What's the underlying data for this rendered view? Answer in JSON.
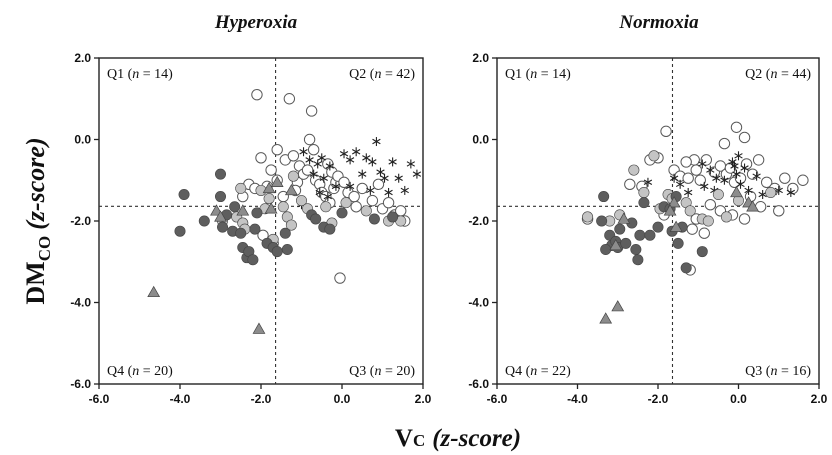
{
  "figure": {
    "ylabel_main": "DM",
    "ylabel_sub": "CO",
    "ylabel_unit": "(z-score)",
    "xlabel_main": "V",
    "xlabel_sub": "C",
    "xlabel_unit": "(z-score)",
    "marker_colors": {
      "filled_dark": "#5e5e5e",
      "filled_light": "#c4c4c4",
      "open_stroke": "#5a5a5a",
      "triangle_fill": "#8c8c8c"
    }
  },
  "chart_data": [
    {
      "type": "scatter",
      "title": "Hyperoxia",
      "xlim": [
        -6.0,
        2.0
      ],
      "ylim": [
        -6.0,
        2.0
      ],
      "xticks": [
        "-6.0",
        "-4.0",
        "-2.0",
        "0.0",
        "2.0"
      ],
      "yticks": [
        "2.0",
        "0.0",
        "-2.0",
        "-4.0",
        "-6.0"
      ],
      "xthreshold": -1.64,
      "ythreshold": -1.64,
      "quadrants": {
        "q1": {
          "label": "Q1",
          "n": "14"
        },
        "q2": {
          "label": "Q2",
          "n": "42"
        },
        "q3": {
          "label": "Q3",
          "n": "20"
        },
        "q4": {
          "label": "Q4",
          "n": "20"
        }
      },
      "series": [
        {
          "marker": "filled_dark",
          "points": [
            [
              -4.0,
              -2.25
            ],
            [
              -3.9,
              -1.35
            ],
            [
              -3.4,
              -2.0
            ],
            [
              -3.0,
              -0.85
            ],
            [
              -3.0,
              -1.4
            ],
            [
              -2.95,
              -2.15
            ],
            [
              -2.85,
              -1.85
            ],
            [
              -2.7,
              -2.25
            ],
            [
              -2.65,
              -1.65
            ],
            [
              -2.5,
              -2.3
            ],
            [
              -2.45,
              -2.65
            ],
            [
              -2.35,
              -2.9
            ],
            [
              -2.3,
              -2.75
            ],
            [
              -2.2,
              -2.95
            ],
            [
              -2.15,
              -2.2
            ],
            [
              -2.1,
              -1.8
            ],
            [
              -1.85,
              -2.55
            ],
            [
              -1.7,
              -2.65
            ],
            [
              -1.6,
              -2.75
            ],
            [
              -1.4,
              -2.3
            ],
            [
              -1.35,
              -2.7
            ],
            [
              -0.75,
              -1.85
            ],
            [
              -0.65,
              -1.95
            ],
            [
              -0.45,
              -2.15
            ],
            [
              -0.3,
              -2.2
            ],
            [
              0.0,
              -1.8
            ],
            [
              0.8,
              -1.95
            ],
            [
              1.25,
              -1.9
            ]
          ]
        },
        {
          "marker": "filled_light",
          "points": [
            [
              -2.95,
              -2.0
            ],
            [
              -2.6,
              -1.9
            ],
            [
              -2.5,
              -1.2
            ],
            [
              -2.45,
              -2.05
            ],
            [
              -2.4,
              -2.2
            ],
            [
              -2.0,
              -1.25
            ],
            [
              -1.9,
              -1.7
            ],
            [
              -1.8,
              -1.45
            ],
            [
              -1.7,
              -2.45
            ],
            [
              -1.45,
              -1.65
            ],
            [
              -1.35,
              -1.9
            ],
            [
              -1.25,
              -2.1
            ],
            [
              -1.2,
              -0.9
            ],
            [
              -1.0,
              -1.5
            ],
            [
              -0.85,
              -1.7
            ],
            [
              -0.4,
              -1.65
            ],
            [
              -0.25,
              -2.05
            ],
            [
              0.1,
              -1.55
            ],
            [
              0.6,
              -1.75
            ],
            [
              1.15,
              -2.0
            ],
            [
              1.45,
              -2.0
            ]
          ]
        },
        {
          "marker": "open",
          "points": [
            [
              -2.1,
              1.1
            ],
            [
              -1.3,
              1.0
            ],
            [
              -0.75,
              0.7
            ],
            [
              -1.6,
              -0.25
            ],
            [
              -2.0,
              -0.45
            ],
            [
              -1.75,
              -0.75
            ],
            [
              -2.3,
              -1.1
            ],
            [
              -2.15,
              -1.2
            ],
            [
              -2.45,
              -1.4
            ],
            [
              -1.85,
              -1.15
            ],
            [
              -1.6,
              -1.0
            ],
            [
              -1.4,
              -0.5
            ],
            [
              -1.2,
              -0.4
            ],
            [
              -1.05,
              -0.65
            ],
            [
              -1.1,
              -1.05
            ],
            [
              -0.95,
              -0.85
            ],
            [
              -0.85,
              -0.75
            ],
            [
              -0.8,
              0.0
            ],
            [
              -0.7,
              -0.25
            ],
            [
              -0.65,
              -1.0
            ],
            [
              -0.55,
              -1.1
            ],
            [
              -0.5,
              -1.3
            ],
            [
              -0.4,
              -1.4
            ],
            [
              -0.35,
              -0.6
            ],
            [
              -0.25,
              -0.8
            ],
            [
              -0.2,
              -1.2
            ],
            [
              -0.15,
              -1.05
            ],
            [
              -0.1,
              -0.9
            ],
            [
              0.05,
              -1.05
            ],
            [
              0.15,
              -1.3
            ],
            [
              0.3,
              -1.4
            ],
            [
              0.35,
              -1.65
            ],
            [
              0.5,
              -1.2
            ],
            [
              0.75,
              -1.5
            ],
            [
              0.9,
              -1.1
            ],
            [
              1.0,
              -1.7
            ],
            [
              1.15,
              -1.55
            ],
            [
              1.3,
              -1.85
            ],
            [
              1.45,
              -1.75
            ],
            [
              1.55,
              -2.0
            ],
            [
              -1.45,
              -1.4
            ],
            [
              -1.15,
              -1.25
            ],
            [
              -0.3,
              -1.55
            ],
            [
              -0.05,
              -3.4
            ],
            [
              -1.7,
              -2.55
            ],
            [
              -1.95,
              -2.35
            ]
          ]
        },
        {
          "marker": "asterisk",
          "points": [
            [
              -0.95,
              -0.3
            ],
            [
              -0.8,
              -0.5
            ],
            [
              -0.6,
              -0.6
            ],
            [
              -0.5,
              -0.45
            ],
            [
              -0.7,
              -0.85
            ],
            [
              -0.45,
              -0.95
            ],
            [
              -0.3,
              -0.65
            ],
            [
              -0.15,
              -1.15
            ],
            [
              0.05,
              -0.35
            ],
            [
              0.2,
              -0.5
            ],
            [
              0.35,
              -0.3
            ],
            [
              0.5,
              -0.85
            ],
            [
              0.6,
              -0.45
            ],
            [
              0.75,
              -0.55
            ],
            [
              0.85,
              -0.05
            ],
            [
              0.95,
              -0.8
            ],
            [
              1.05,
              -0.95
            ],
            [
              1.15,
              -1.3
            ],
            [
              1.25,
              -0.55
            ],
            [
              1.4,
              -0.95
            ],
            [
              1.55,
              -1.25
            ],
            [
              1.7,
              -0.6
            ],
            [
              1.85,
              -0.85
            ],
            [
              -0.35,
              -1.4
            ],
            [
              0.2,
              -1.15
            ],
            [
              0.7,
              -1.25
            ],
            [
              -0.55,
              -1.3
            ],
            [
              -1.0,
              -1.6
            ]
          ]
        },
        {
          "marker": "triangle",
          "points": [
            [
              -4.65,
              -3.75
            ],
            [
              -2.05,
              -4.65
            ],
            [
              -3.1,
              -1.75
            ],
            [
              -3.0,
              -1.9
            ],
            [
              -1.8,
              -1.2
            ],
            [
              -1.6,
              -1.05
            ],
            [
              -1.75,
              -1.7
            ],
            [
              -2.45,
              -1.75
            ],
            [
              -1.25,
              -1.25
            ]
          ]
        }
      ]
    },
    {
      "type": "scatter",
      "title": "Normoxia",
      "xlim": [
        -6.0,
        2.0
      ],
      "ylim": [
        -6.0,
        2.0
      ],
      "xticks": [
        "-6.0",
        "-4.0",
        "-2.0",
        "0.0",
        "2.0"
      ],
      "yticks": [
        "2.0",
        "0.0",
        "-2.0",
        "-4.0",
        "-6.0"
      ],
      "xthreshold": -1.64,
      "ythreshold": -1.64,
      "quadrants": {
        "q1": {
          "label": "Q1",
          "n": "14"
        },
        "q2": {
          "label": "Q2",
          "n": "44"
        },
        "q3": {
          "label": "Q3",
          "n": "16"
        },
        "q4": {
          "label": "Q4",
          "n": "22"
        }
      },
      "series": [
        {
          "marker": "filled_dark",
          "points": [
            [
              -3.35,
              -1.4
            ],
            [
              -3.4,
              -2.0
            ],
            [
              -3.2,
              -2.35
            ],
            [
              -3.15,
              -2.6
            ],
            [
              -3.05,
              -2.5
            ],
            [
              -3.0,
              -2.65
            ],
            [
              -2.95,
              -2.2
            ],
            [
              -2.8,
              -2.55
            ],
            [
              -2.65,
              -2.05
            ],
            [
              -2.55,
              -2.7
            ],
            [
              -2.5,
              -2.95
            ],
            [
              -2.45,
              -2.35
            ],
            [
              -2.35,
              -1.55
            ],
            [
              -2.2,
              -2.35
            ],
            [
              -2.0,
              -2.15
            ],
            [
              -1.85,
              -1.65
            ],
            [
              -1.7,
              -1.7
            ],
            [
              -1.65,
              -2.25
            ],
            [
              -1.5,
              -2.55
            ],
            [
              -1.4,
              -2.15
            ],
            [
              -1.3,
              -3.15
            ],
            [
              -0.9,
              -2.75
            ],
            [
              -3.3,
              -2.7
            ],
            [
              -1.55,
              -1.4
            ]
          ]
        },
        {
          "marker": "filled_light",
          "points": [
            [
              -3.75,
              -1.9
            ],
            [
              -3.2,
              -2.0
            ],
            [
              -2.95,
              -1.85
            ],
            [
              -2.6,
              -0.75
            ],
            [
              -2.35,
              -1.3
            ],
            [
              -2.1,
              -0.4
            ],
            [
              -1.95,
              -1.7
            ],
            [
              -1.75,
              -1.35
            ],
            [
              -1.65,
              -1.45
            ],
            [
              -1.3,
              -1.55
            ],
            [
              -1.2,
              -1.75
            ],
            [
              -0.9,
              -1.95
            ],
            [
              -0.75,
              -2.0
            ],
            [
              -0.5,
              -1.35
            ],
            [
              -0.3,
              -1.9
            ],
            [
              0.0,
              -1.5
            ],
            [
              0.8,
              -1.3
            ]
          ]
        },
        {
          "marker": "open",
          "points": [
            [
              -1.8,
              0.2
            ],
            [
              -0.05,
              0.3
            ],
            [
              0.15,
              0.05
            ],
            [
              -0.35,
              -0.1
            ],
            [
              -0.8,
              -0.5
            ],
            [
              -1.1,
              -0.5
            ],
            [
              -1.3,
              -0.55
            ],
            [
              -2.0,
              -0.45
            ],
            [
              -2.2,
              -0.5
            ],
            [
              -1.6,
              -0.75
            ],
            [
              -1.45,
              -0.9
            ],
            [
              -1.25,
              -0.95
            ],
            [
              -1.05,
              -0.75
            ],
            [
              -0.95,
              -1.0
            ],
            [
              -0.6,
              -0.8
            ],
            [
              -0.45,
              -0.65
            ],
            [
              -0.3,
              -0.85
            ],
            [
              -0.2,
              -0.7
            ],
            [
              -0.1,
              -1.05
            ],
            [
              0.05,
              -0.95
            ],
            [
              0.2,
              -0.6
            ],
            [
              0.35,
              -0.85
            ],
            [
              0.5,
              -0.5
            ],
            [
              0.7,
              -1.05
            ],
            [
              0.9,
              -1.2
            ],
            [
              1.15,
              -0.95
            ],
            [
              1.35,
              -1.2
            ],
            [
              1.6,
              -1.0
            ],
            [
              0.3,
              -1.4
            ],
            [
              0.55,
              -1.65
            ],
            [
              1.0,
              -1.75
            ],
            [
              -0.15,
              -1.85
            ],
            [
              0.15,
              -1.95
            ],
            [
              -0.7,
              -1.6
            ],
            [
              -1.05,
              -1.95
            ],
            [
              -1.2,
              -3.2
            ],
            [
              -1.15,
              -2.2
            ],
            [
              -0.45,
              -1.75
            ],
            [
              -2.4,
              -1.15
            ],
            [
              -2.7,
              -1.1
            ],
            [
              -3.75,
              -1.95
            ],
            [
              -1.85,
              -1.85
            ],
            [
              -0.85,
              -2.3
            ]
          ]
        },
        {
          "marker": "asterisk",
          "points": [
            [
              -0.9,
              -0.6
            ],
            [
              -0.7,
              -0.75
            ],
            [
              -0.55,
              -0.95
            ],
            [
              -0.35,
              -1.0
            ],
            [
              -0.15,
              -0.55
            ],
            [
              0.0,
              -0.4
            ],
            [
              0.15,
              -0.7
            ],
            [
              -0.1,
              -0.65
            ],
            [
              0.05,
              -1.1
            ],
            [
              0.25,
              -1.25
            ],
            [
              0.45,
              -0.9
            ],
            [
              0.85,
              -1.3
            ],
            [
              1.0,
              -1.25
            ],
            [
              1.3,
              -1.3
            ],
            [
              -0.05,
              -0.85
            ],
            [
              -0.6,
              -1.25
            ],
            [
              -0.85,
              -1.15
            ],
            [
              -1.25,
              -1.3
            ],
            [
              -1.45,
              -1.1
            ],
            [
              -1.6,
              -0.95
            ],
            [
              -2.25,
              -1.05
            ],
            [
              0.6,
              -1.35
            ]
          ]
        },
        {
          "marker": "triangle",
          "points": [
            [
              -3.3,
              -4.4
            ],
            [
              -3.0,
              -4.1
            ],
            [
              -3.05,
              -2.6
            ],
            [
              -2.85,
              -1.95
            ],
            [
              -1.6,
              -1.55
            ],
            [
              -1.55,
              -2.15
            ],
            [
              -1.7,
              -1.75
            ],
            [
              -0.05,
              -1.3
            ],
            [
              0.25,
              -1.55
            ],
            [
              0.35,
              -1.65
            ]
          ]
        }
      ]
    }
  ]
}
